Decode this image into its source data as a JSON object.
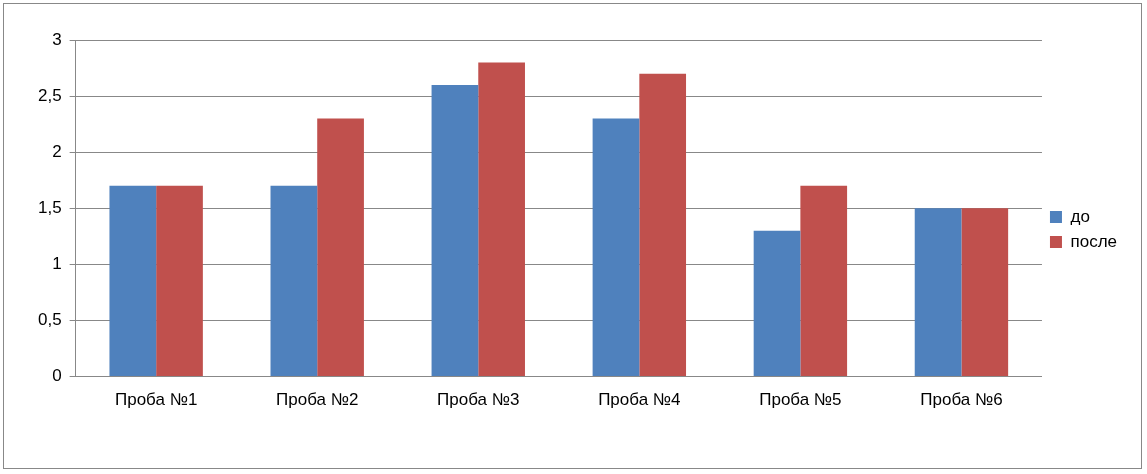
{
  "chart_data": {
    "type": "bar",
    "categories": [
      "Проба №1",
      "Проба №2",
      "Проба №3",
      "Проба №4",
      "Проба №5",
      "Проба №6"
    ],
    "series": [
      {
        "name": "до",
        "color": "#4f81bd",
        "values": [
          1.7,
          1.7,
          2.6,
          2.3,
          1.3,
          1.5
        ]
      },
      {
        "name": "после",
        "color": "#c0504d",
        "values": [
          1.7,
          2.3,
          2.8,
          2.7,
          1.7,
          1.5
        ]
      }
    ],
    "ylim": [
      0,
      3
    ],
    "yticks": [
      0,
      {
        "value": 0.5,
        "label": "0,5"
      },
      1,
      {
        "value": 1.5,
        "label": "1,5"
      },
      2,
      {
        "value": 2.5,
        "label": "2,5"
      },
      3
    ],
    "grid": "y",
    "legend": "right"
  }
}
